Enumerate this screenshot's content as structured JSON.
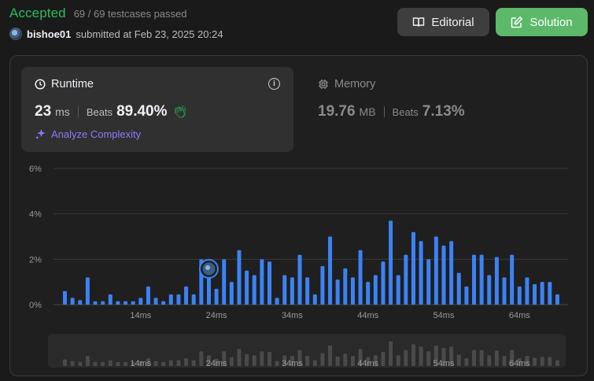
{
  "header": {
    "status": "Accepted",
    "testcases": "69 / 69 testcases passed",
    "username": "bishoe01",
    "submitted_text": "submitted at Feb 23, 2025 20:24",
    "editorial_label": "Editorial",
    "solution_label": "Solution"
  },
  "runtime": {
    "title": "Runtime",
    "value": "23",
    "unit": "ms",
    "beats_label": "Beats",
    "beats_value": "89.40%",
    "analyze_label": "Analyze Complexity"
  },
  "memory": {
    "title": "Memory",
    "value": "19.76",
    "unit": "MB",
    "beats_label": "Beats",
    "beats_value": "7.13%"
  },
  "colors": {
    "accepted": "#2cbb5d",
    "bar": "#3b82f6",
    "solution_button": "#5cb96a",
    "analyze": "#8b7cf6"
  },
  "chart_data": {
    "type": "bar",
    "ylabel": "",
    "xlabel": "",
    "ylim": [
      0,
      6
    ],
    "y_ticks": [
      "0%",
      "2%",
      "4%",
      "6%"
    ],
    "x_ticks": [
      "14ms",
      "24ms",
      "34ms",
      "44ms",
      "54ms",
      "64ms"
    ],
    "grid": true,
    "x": [
      4,
      5,
      6,
      7,
      8,
      9,
      10,
      11,
      12,
      13,
      14,
      15,
      16,
      17,
      18,
      19,
      20,
      21,
      22,
      23,
      24,
      25,
      26,
      27,
      28,
      29,
      30,
      31,
      32,
      33,
      34,
      35,
      36,
      37,
      38,
      39,
      40,
      41,
      42,
      43,
      44,
      45,
      46,
      47,
      48,
      49,
      50,
      51,
      52,
      53,
      54,
      55,
      56,
      57,
      58,
      59,
      60,
      61,
      62,
      63,
      64,
      65,
      66,
      67,
      68,
      69
    ],
    "values": [
      0.6,
      0.3,
      0.2,
      1.2,
      0.15,
      0.15,
      0.45,
      0.15,
      0.15,
      0.15,
      0.3,
      0.8,
      0.3,
      0.15,
      0.45,
      0.45,
      0.8,
      0.45,
      2.0,
      1.3,
      0.7,
      2.0,
      1.0,
      2.4,
      1.5,
      1.3,
      2.0,
      1.9,
      0.3,
      1.3,
      1.2,
      2.2,
      1.2,
      0.45,
      1.7,
      3.0,
      1.1,
      1.6,
      1.2,
      2.4,
      1.0,
      1.3,
      1.9,
      3.7,
      1.3,
      2.2,
      3.2,
      2.8,
      2.0,
      3.0,
      2.6,
      2.8,
      1.4,
      0.8,
      2.2,
      2.2,
      1.3,
      2.1,
      1.2,
      2.2,
      0.8,
      1.2,
      0.9,
      1.0,
      1.0,
      0.45
    ],
    "highlight_x": 23,
    "highlight_label": "bishoe01"
  }
}
